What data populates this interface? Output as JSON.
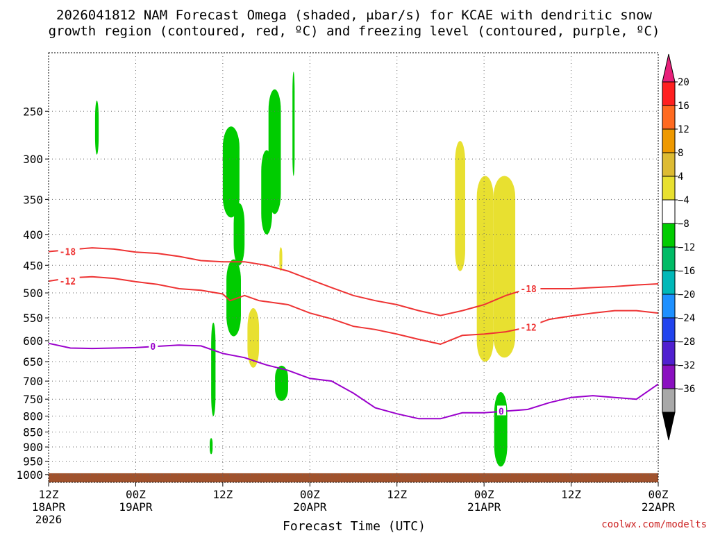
{
  "chart_data": {
    "type": "contour",
    "title": "2026041812 NAM Forecast Omega (shaded, μbar/s) for KCAE with dendritic snow",
    "title_line2": "growth region (contoured, red, ºC) and freezing level (contoured, purple, ºC)",
    "xlabel": "Forecast Time (UTC)",
    "credit": "coolwx.com/modelts",
    "x_ticks": [
      {
        "hour": 0,
        "line1": "12Z",
        "line2": "18APR",
        "line3": "2026"
      },
      {
        "hour": 12,
        "line1": "00Z",
        "line2": "19APR",
        "line3": ""
      },
      {
        "hour": 24,
        "line1": "12Z",
        "line2": "",
        "line3": ""
      },
      {
        "hour": 36,
        "line1": "00Z",
        "line2": "20APR",
        "line3": ""
      },
      {
        "hour": 48,
        "line1": "12Z",
        "line2": "",
        "line3": ""
      },
      {
        "hour": 60,
        "line1": "00Z",
        "line2": "21APR",
        "line3": ""
      },
      {
        "hour": 72,
        "line1": "12Z",
        "line2": "",
        "line3": ""
      },
      {
        "hour": 84,
        "line1": "00Z",
        "line2": "22APR",
        "line3": ""
      }
    ],
    "y_ticks": [
      "250",
      "300",
      "350",
      "400",
      "450",
      "500",
      "550",
      "600",
      "650",
      "700",
      "750",
      "800",
      "850",
      "900",
      "950",
      "1000"
    ],
    "y_values": [
      250,
      300,
      350,
      400,
      450,
      500,
      550,
      600,
      650,
      700,
      750,
      800,
      850,
      900,
      950,
      1000
    ],
    "ylim": [
      200,
      1030
    ],
    "xlim": [
      0,
      84
    ],
    "y_scale": "log",
    "colorbar": {
      "labels": [
        "20",
        "16",
        "12",
        "8",
        "4",
        "−4",
        "−8",
        "−12",
        "−16",
        "−20",
        "−24",
        "−28",
        "−32",
        "−36"
      ],
      "colors": [
        "#e8207a",
        "#ff2020",
        "#ff6a20",
        "#ee9900",
        "#ddbb33",
        "#e8e030",
        "#ffffff",
        "#00cc00",
        "#00bb66",
        "#00b8b8",
        "#1e90ff",
        "#2244ee",
        "#5020d0",
        "#8a10c0",
        "#a8a8a8",
        "#000000"
      ]
    },
    "contours": [
      {
        "label": "-18",
        "color": "#ee3333",
        "points": [
          [
            0,
            427
          ],
          [
            3,
            424
          ],
          [
            6,
            421
          ],
          [
            9,
            423
          ],
          [
            12,
            428
          ],
          [
            15,
            430
          ],
          [
            18,
            435
          ],
          [
            21,
            442
          ],
          [
            24,
            444
          ],
          [
            27,
            444
          ],
          [
            30,
            450
          ],
          [
            33,
            460
          ],
          [
            36,
            475
          ],
          [
            39,
            490
          ],
          [
            42,
            505
          ],
          [
            45,
            515
          ],
          [
            48,
            523
          ],
          [
            51,
            535
          ],
          [
            54,
            545
          ],
          [
            57,
            535
          ],
          [
            60,
            523
          ],
          [
            63,
            505
          ],
          [
            66,
            492
          ],
          [
            69,
            492
          ],
          [
            72,
            492
          ],
          [
            75,
            490
          ],
          [
            78,
            488
          ],
          [
            81,
            485
          ],
          [
            84,
            483
          ]
        ]
      },
      {
        "label": "-12",
        "color": "#ee3333",
        "points": [
          [
            0,
            478
          ],
          [
            3,
            472
          ],
          [
            6,
            470
          ],
          [
            9,
            473
          ],
          [
            12,
            479
          ],
          [
            15,
            484
          ],
          [
            18,
            492
          ],
          [
            21,
            495
          ],
          [
            24,
            502
          ],
          [
            25,
            515
          ],
          [
            27,
            505
          ],
          [
            29,
            515
          ],
          [
            33,
            523
          ],
          [
            36,
            540
          ],
          [
            39,
            552
          ],
          [
            42,
            568
          ],
          [
            45,
            575
          ],
          [
            48,
            585
          ],
          [
            51,
            597
          ],
          [
            54,
            608
          ],
          [
            57,
            588
          ],
          [
            60,
            585
          ],
          [
            63,
            580
          ],
          [
            66,
            570
          ],
          [
            69,
            553
          ],
          [
            72,
            546
          ],
          [
            75,
            540
          ],
          [
            78,
            535
          ],
          [
            81,
            535
          ],
          [
            84,
            540
          ]
        ]
      },
      {
        "label": "0",
        "color": "#9a00cc",
        "points": [
          [
            0,
            606
          ],
          [
            3,
            617
          ],
          [
            6,
            618
          ],
          [
            9,
            617
          ],
          [
            12,
            616
          ],
          [
            15,
            613
          ],
          [
            18,
            610
          ],
          [
            21,
            612
          ],
          [
            24,
            630
          ],
          [
            27,
            640
          ],
          [
            30,
            658
          ],
          [
            33,
            672
          ],
          [
            36,
            693
          ],
          [
            39,
            700
          ],
          [
            42,
            733
          ],
          [
            45,
            775
          ],
          [
            48,
            793
          ],
          [
            51,
            808
          ],
          [
            54,
            808
          ],
          [
            57,
            790
          ],
          [
            60,
            790
          ],
          [
            63,
            785
          ],
          [
            66,
            780
          ],
          [
            69,
            760
          ],
          [
            72,
            745
          ],
          [
            75,
            740
          ],
          [
            78,
            745
          ],
          [
            81,
            750
          ],
          [
            84,
            708
          ]
        ]
      }
    ],
    "shaded_regions": [
      {
        "value": -6,
        "hours": [
          6.4,
          6.9
        ],
        "p_top": 240,
        "p_bottom": 295
      },
      {
        "value": -6,
        "hours": [
          24.0,
          26.3
        ],
        "p_top": 265,
        "p_bottom": 375
      },
      {
        "value": -6,
        "hours": [
          25.5,
          27.0
        ],
        "p_top": 355,
        "p_bottom": 450
      },
      {
        "value": -6,
        "hours": [
          24.5,
          26.5
        ],
        "p_top": 440,
        "p_bottom": 590
      },
      {
        "value": -6,
        "hours": [
          29.3,
          30.8
        ],
        "p_top": 290,
        "p_bottom": 400
      },
      {
        "value": -6,
        "hours": [
          30.3,
          32.0
        ],
        "p_top": 230,
        "p_bottom": 370
      },
      {
        "value": -6,
        "hours": [
          33.6,
          33.9
        ],
        "p_top": 215,
        "p_bottom": 320
      },
      {
        "value": -6,
        "hours": [
          22.4,
          23.0
        ],
        "p_top": 560,
        "p_bottom": 800
      },
      {
        "value": -6,
        "hours": [
          31.2,
          33.0
        ],
        "p_top": 660,
        "p_bottom": 755
      },
      {
        "value": -6,
        "hours": [
          22.2,
          22.6
        ],
        "p_top": 870,
        "p_bottom": 925
      },
      {
        "value": -6,
        "hours": [
          61.4,
          63.2
        ],
        "p_top": 730,
        "p_bottom": 970
      },
      {
        "value": 6,
        "hours": [
          56.0,
          57.4
        ],
        "p_top": 280,
        "p_bottom": 460
      },
      {
        "value": 6,
        "hours": [
          59.0,
          61.3
        ],
        "p_top": 320,
        "p_bottom": 650
      },
      {
        "value": 6,
        "hours": [
          61.3,
          64.3
        ],
        "p_top": 320,
        "p_bottom": 640
      },
      {
        "value": 6,
        "hours": [
          27.4,
          29.0
        ],
        "p_top": 530,
        "p_bottom": 665
      },
      {
        "value": 6,
        "hours": [
          31.8,
          32.2
        ],
        "p_top": 420,
        "p_bottom": 460
      }
    ],
    "terrain": {
      "p_top": 995,
      "color": "#a0522d"
    }
  }
}
